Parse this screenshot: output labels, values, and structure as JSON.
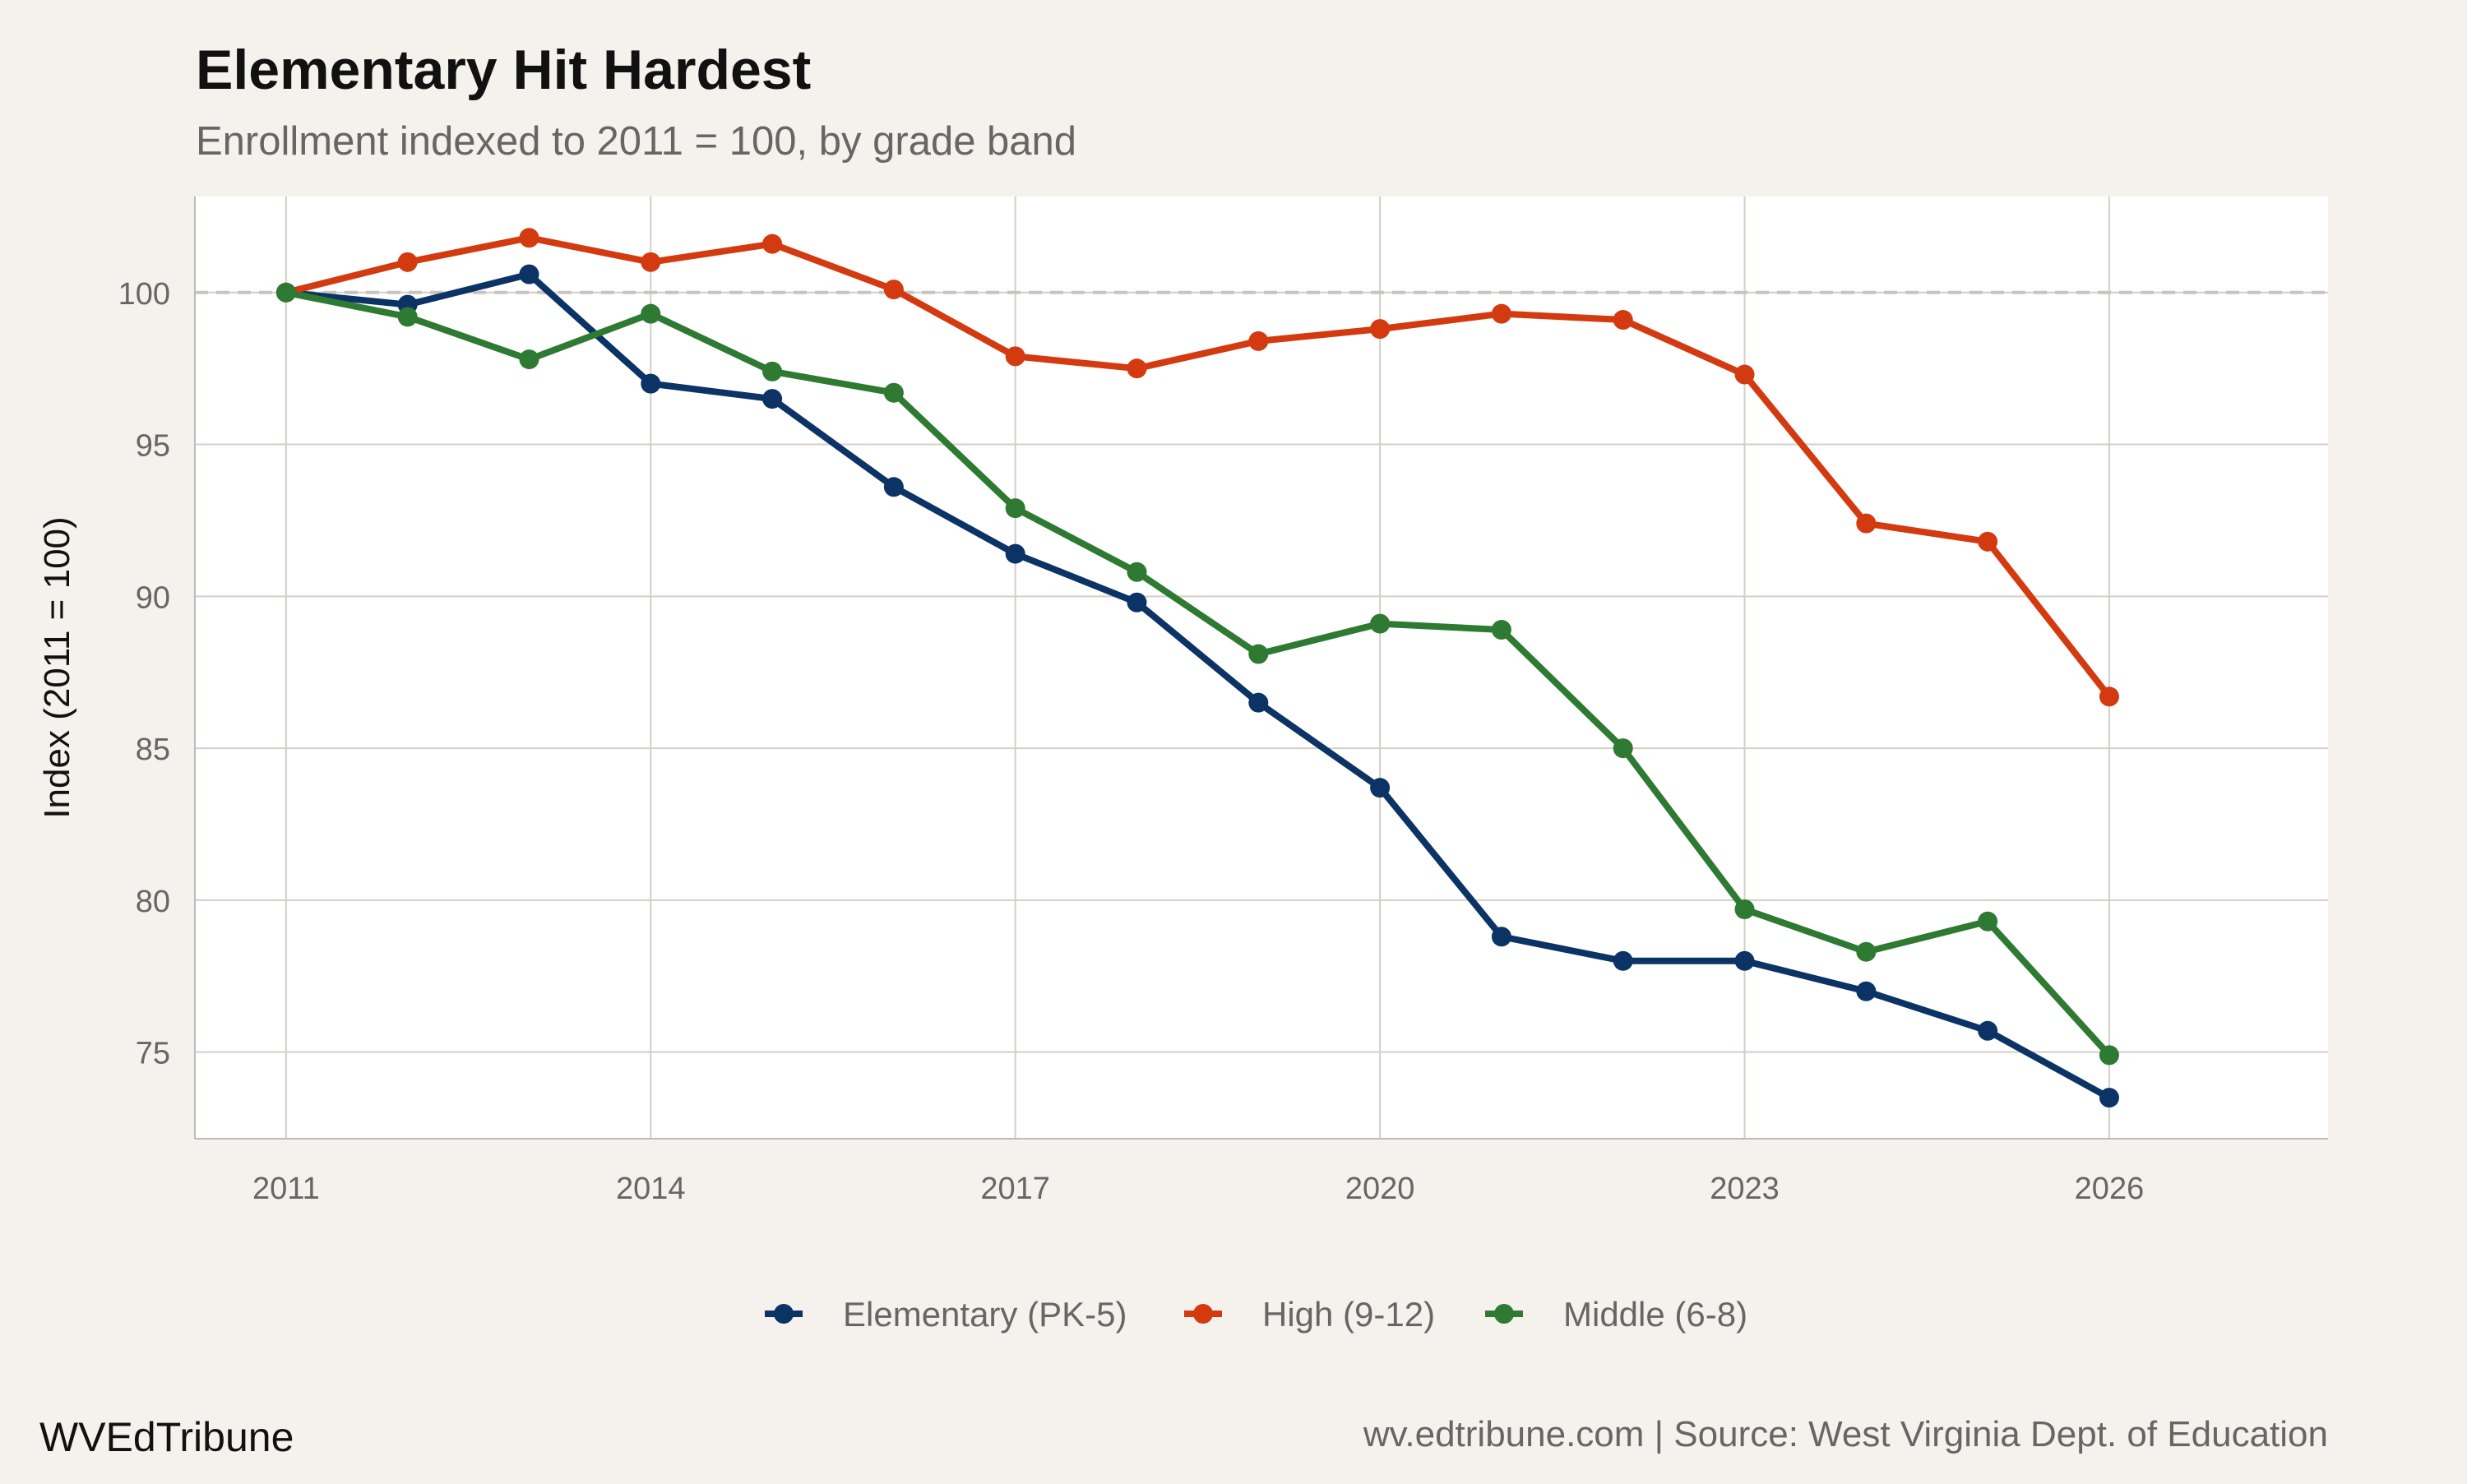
{
  "chart_data": {
    "type": "line",
    "title": "Elementary Hit Hardest",
    "subtitle": "Enrollment indexed to 2011 = 100, by grade band",
    "xlabel": "",
    "ylabel": "Index (2011 = 100)",
    "xlim": [
      2010.25,
      2027.8
    ],
    "ylim": [
      72.15,
      103.16
    ],
    "xticks": [
      2011,
      2014,
      2017,
      2020,
      2023,
      2026
    ],
    "yticks": [
      75,
      80,
      85,
      90,
      95,
      100
    ],
    "reference_line": 100,
    "grid": true,
    "legend_position": "bottom",
    "x": [
      2011,
      2012,
      2013,
      2014,
      2015,
      2016,
      2017,
      2018,
      2019,
      2020,
      2021,
      2022,
      2023,
      2024,
      2025,
      2026
    ],
    "series": [
      {
        "name": "Elementary (PK-5)",
        "color": "#0b3366",
        "values": [
          100,
          99.6,
          100.6,
          97.0,
          96.5,
          93.6,
          91.4,
          89.8,
          86.5,
          83.7,
          78.8,
          78.0,
          78.0,
          77.0,
          75.7,
          73.5
        ]
      },
      {
        "name": "High (9-12)",
        "color": "#d33a10",
        "values": [
          100,
          101.0,
          101.8,
          101.0,
          101.6,
          100.1,
          97.9,
          97.5,
          98.4,
          98.8,
          99.3,
          99.1,
          97.3,
          92.4,
          91.8,
          86.7
        ]
      },
      {
        "name": "Middle (6-8)",
        "color": "#2e7a32",
        "values": [
          100,
          99.2,
          97.8,
          99.3,
          97.4,
          96.7,
          92.9,
          90.8,
          88.1,
          89.1,
          88.9,
          85.0,
          79.7,
          78.3,
          79.3,
          74.9
        ]
      }
    ]
  },
  "footer": {
    "brand": "WVEdTribune",
    "source": "wv.edtribune.com | Source: West Virginia Dept. of Education"
  }
}
